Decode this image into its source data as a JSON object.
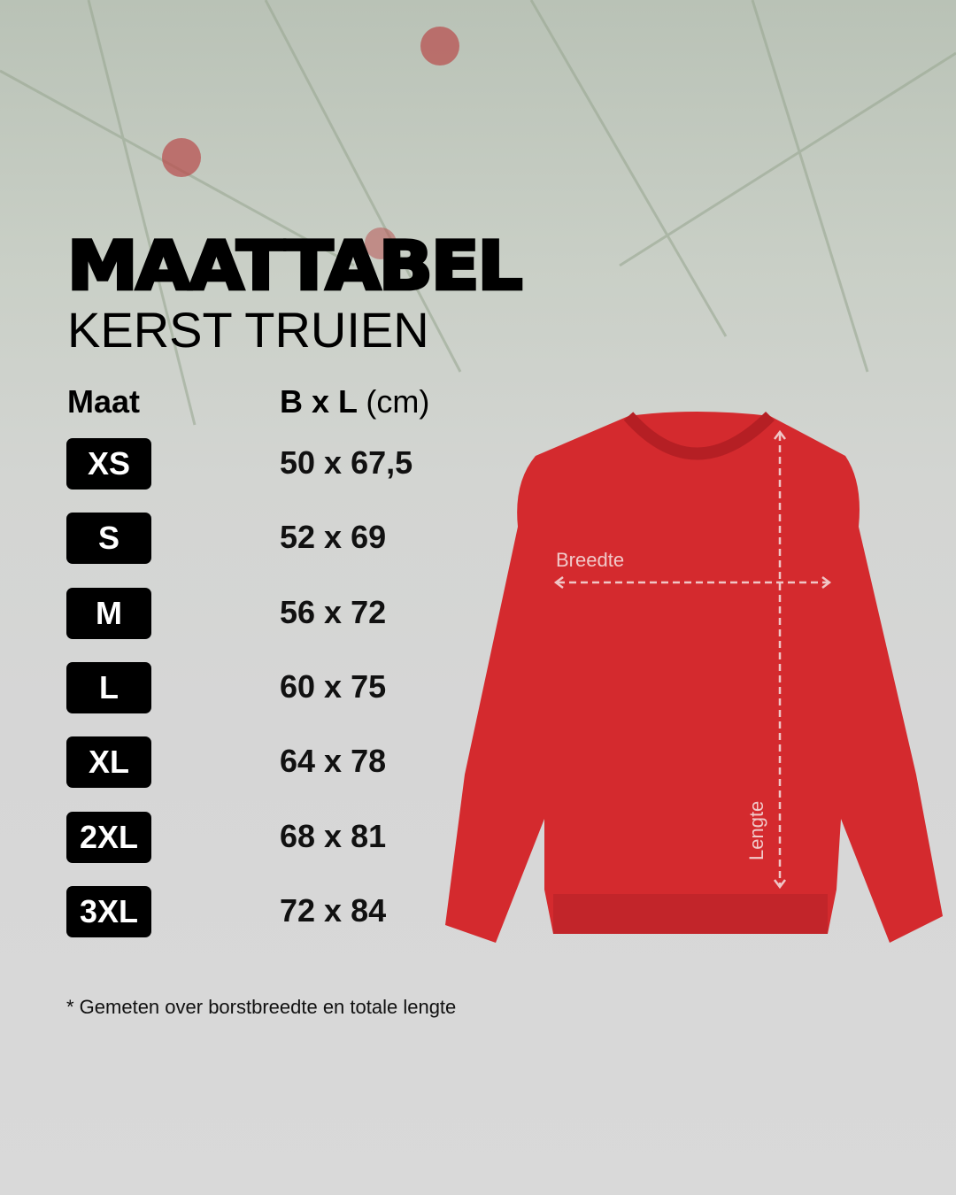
{
  "title": "MAATTABEL",
  "subtitle": "KERST TRUIEN",
  "table": {
    "header_size": "Maat",
    "header_dims_bold": "B x L",
    "header_dims_unit": "(cm)",
    "rows": [
      {
        "size": "XS",
        "dims": "50 x 67,5"
      },
      {
        "size": "S",
        "dims": "52 x 69"
      },
      {
        "size": "M",
        "dims": "56 x 72"
      },
      {
        "size": "L",
        "dims": "60 x 75"
      },
      {
        "size": "XL",
        "dims": "64 x 78"
      },
      {
        "size": "2XL",
        "dims": "68 x 81"
      },
      {
        "size": "3XL",
        "dims": "72 x 84"
      }
    ]
  },
  "diagram": {
    "width_label": "Breedte",
    "length_label": "Lengte",
    "sweater_color": "#d42a2e"
  },
  "footnote": "* Gemeten over borstbreedte en totale lengte"
}
